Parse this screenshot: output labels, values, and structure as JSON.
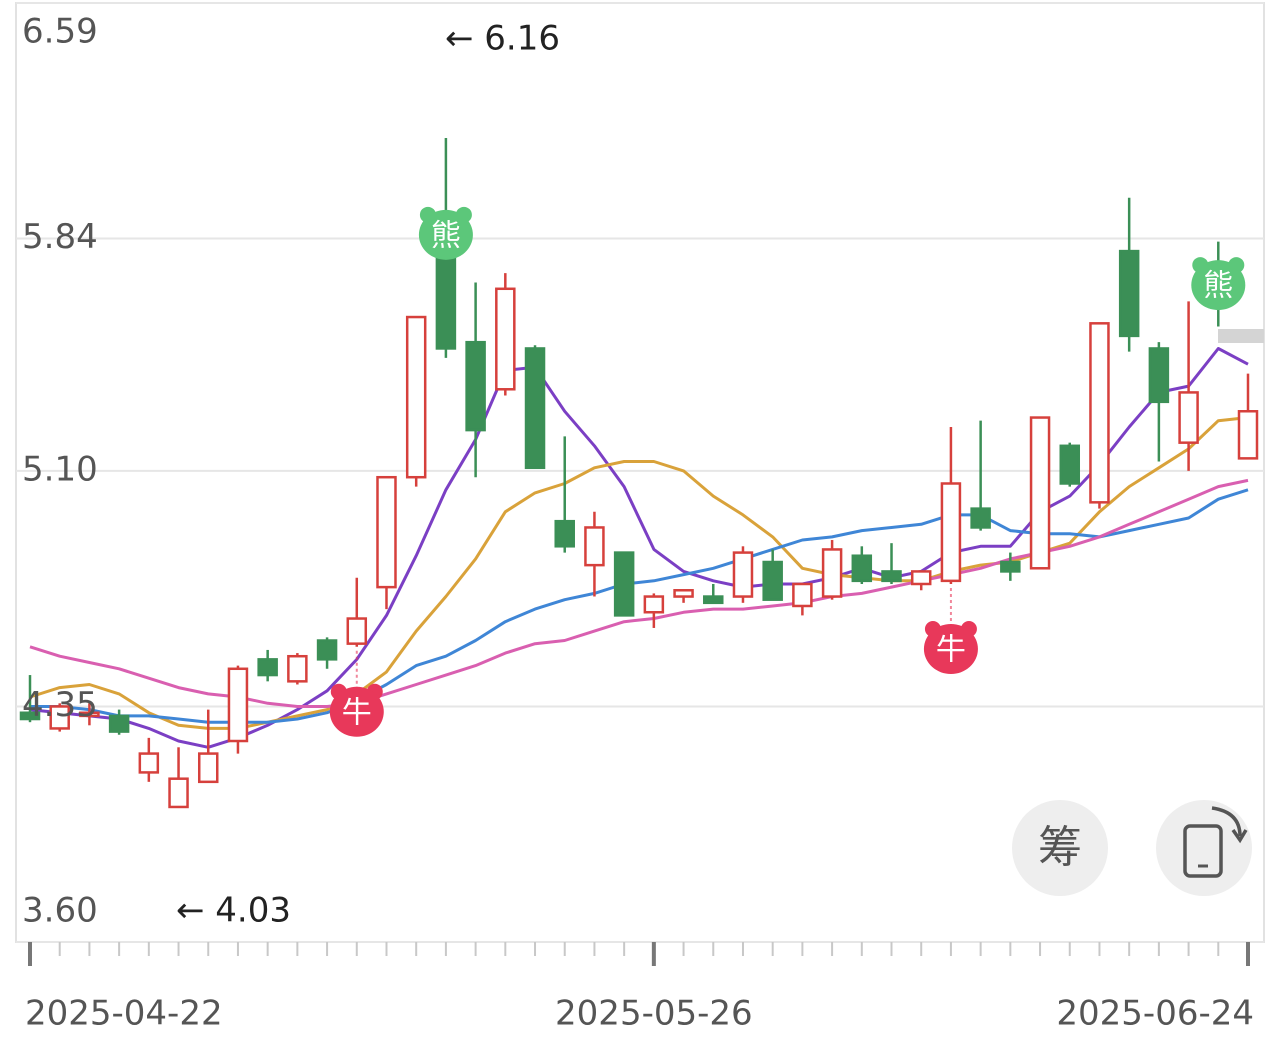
{
  "chart_data": {
    "type": "candlestick",
    "categories": [
      "2025-04-22",
      null,
      null,
      null,
      null,
      null,
      null,
      null,
      null,
      null,
      null,
      null,
      null,
      null,
      null,
      null,
      null,
      null,
      null,
      null,
      null,
      "2025-05-26",
      null,
      null,
      null,
      null,
      null,
      null,
      null,
      null,
      null,
      null,
      null,
      null,
      null,
      null,
      null,
      null,
      null,
      null,
      null,
      "2025-06-24"
    ],
    "open": [
      4.33,
      4.28,
      4.32,
      4.32,
      4.14,
      4.03,
      4.11,
      4.24,
      4.5,
      4.43,
      4.56,
      4.55,
      4.73,
      5.08,
      5.89,
      5.51,
      5.36,
      5.49,
      4.94,
      4.8,
      4.84,
      4.65,
      4.7,
      4.7,
      4.7,
      4.81,
      4.67,
      4.7,
      4.83,
      4.78,
      4.74,
      4.75,
      4.98,
      4.81,
      4.79,
      5.18,
      5.0,
      5.8,
      5.49,
      5.19,
      5.73,
      5.14
    ],
    "high": [
      4.45,
      4.36,
      4.36,
      4.34,
      4.25,
      4.22,
      4.34,
      4.48,
      4.53,
      4.52,
      4.57,
      4.76,
      5.08,
      5.59,
      6.16,
      5.7,
      5.73,
      5.5,
      5.21,
      4.97,
      4.84,
      4.71,
      4.72,
      4.74,
      4.86,
      4.85,
      4.74,
      4.88,
      4.86,
      4.87,
      4.78,
      5.24,
      5.26,
      4.84,
      5.27,
      5.19,
      5.57,
      5.97,
      5.51,
      5.64,
      5.83,
      5.41
    ],
    "low": [
      4.3,
      4.27,
      4.29,
      4.26,
      4.11,
      4.03,
      4.11,
      4.2,
      4.43,
      4.42,
      4.47,
      4.54,
      4.66,
      5.05,
      5.46,
      5.08,
      5.34,
      5.11,
      4.84,
      4.7,
      4.64,
      4.6,
      4.68,
      4.68,
      4.68,
      4.69,
      4.64,
      4.69,
      4.74,
      4.74,
      4.72,
      4.74,
      4.91,
      4.75,
      4.79,
      5.05,
      4.98,
      5.48,
      5.13,
      5.1,
      5.56,
      5.14
    ],
    "close": [
      4.31,
      4.35,
      4.33,
      4.27,
      4.2,
      4.12,
      4.2,
      4.47,
      4.45,
      4.51,
      4.5,
      4.63,
      5.08,
      5.59,
      5.49,
      5.23,
      5.68,
      5.11,
      4.86,
      4.92,
      4.64,
      4.7,
      4.72,
      4.68,
      4.84,
      4.69,
      4.74,
      4.85,
      4.75,
      4.75,
      4.78,
      5.06,
      4.92,
      4.78,
      5.27,
      5.06,
      5.57,
      5.53,
      5.32,
      5.35,
      5.71,
      5.29
    ],
    "up_color": "#d6403c",
    "down_color": "#3b8f56",
    "ma_lines": [
      {
        "color": "#7b3fc4",
        "values": [
          4.34,
          4.33,
          4.32,
          4.31,
          4.28,
          4.24,
          4.22,
          4.25,
          4.29,
          4.34,
          4.4,
          4.5,
          4.64,
          4.83,
          5.04,
          5.2,
          5.42,
          5.43,
          5.29,
          5.18,
          5.05,
          4.85,
          4.78,
          4.75,
          4.73,
          4.74,
          4.74,
          4.76,
          4.79,
          4.76,
          4.78,
          4.84,
          4.86,
          4.86,
          4.97,
          5.02,
          5.12,
          5.24,
          5.35,
          5.37,
          5.49,
          5.44
        ]
      },
      {
        "color": "#d9a23a",
        "values": [
          4.38,
          4.41,
          4.42,
          4.39,
          4.33,
          4.29,
          4.28,
          4.28,
          4.3,
          4.32,
          4.34,
          4.39,
          4.46,
          4.59,
          4.7,
          4.82,
          4.97,
          5.03,
          5.06,
          5.11,
          5.13,
          5.13,
          5.1,
          5.02,
          4.96,
          4.89,
          4.79,
          4.77,
          4.76,
          4.75,
          4.75,
          4.78,
          4.8,
          4.81,
          4.84,
          4.87,
          4.97,
          5.05,
          5.11,
          5.17,
          5.26,
          5.27
        ]
      },
      {
        "color": "#3f86d6",
        "values": [
          4.35,
          4.35,
          4.34,
          4.32,
          4.32,
          4.31,
          4.3,
          4.3,
          4.3,
          4.31,
          4.33,
          4.37,
          4.42,
          4.48,
          4.51,
          4.56,
          4.62,
          4.66,
          4.69,
          4.71,
          4.74,
          4.75,
          4.77,
          4.79,
          4.82,
          4.85,
          4.88,
          4.89,
          4.91,
          4.92,
          4.93,
          4.96,
          4.96,
          4.91,
          4.9,
          4.9,
          4.89,
          4.91,
          4.93,
          4.95,
          5.01,
          5.04
        ]
      },
      {
        "color": "#d95fb0",
        "values": [
          4.54,
          4.51,
          4.49,
          4.47,
          4.44,
          4.41,
          4.39,
          4.38,
          4.36,
          4.35,
          4.35,
          4.36,
          4.39,
          4.42,
          4.45,
          4.48,
          4.52,
          4.55,
          4.56,
          4.59,
          4.62,
          4.63,
          4.65,
          4.66,
          4.66,
          4.67,
          4.68,
          4.7,
          4.71,
          4.73,
          4.75,
          4.77,
          4.79,
          4.82,
          4.84,
          4.86,
          4.89,
          4.93,
          4.97,
          5.01,
          5.05,
          5.07
        ]
      }
    ],
    "signals": [
      null,
      null,
      null,
      null,
      null,
      null,
      null,
      null,
      null,
      null,
      null,
      "牛",
      null,
      null,
      "熊",
      null,
      null,
      null,
      null,
      null,
      null,
      null,
      null,
      null,
      null,
      null,
      null,
      null,
      null,
      null,
      null,
      "牛",
      null,
      null,
      null,
      null,
      null,
      null,
      null,
      null,
      "熊",
      null
    ],
    "ylim": [
      3.6,
      6.59
    ],
    "yticks": [
      {
        "value": 3.6,
        "label": "3.60"
      },
      4.35,
      {
        "value": 5.1,
        "label": "5.10"
      },
      5.84,
      6.59
    ],
    "grid": true,
    "annotations": {
      "max": "← 6.16",
      "min": "← 4.03"
    },
    "buttons": [
      "筹"
    ]
  }
}
